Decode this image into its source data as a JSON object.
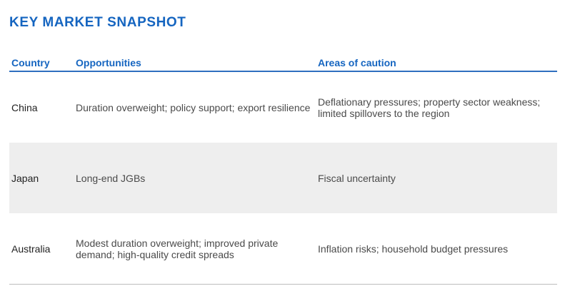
{
  "title": "KEY MARKET SNAPSHOT",
  "table": {
    "headers": {
      "country": "Country",
      "opportunities": "Opportunities",
      "caution": "Areas of caution"
    },
    "rows": [
      {
        "country": "China",
        "opportunities": "Duration overweight; policy support; export resilience",
        "caution": "Deflationary pressures; property sector weakness; limited spillovers to the region"
      },
      {
        "country": "Japan",
        "opportunities": "Long-end JGBs",
        "caution": "Fiscal uncertainty"
      },
      {
        "country": "Australia",
        "opportunities": "Modest duration overweight; improved  private demand; high-quality credit spreads",
        "caution": "Inflation risks; household budget pressures"
      }
    ]
  }
}
